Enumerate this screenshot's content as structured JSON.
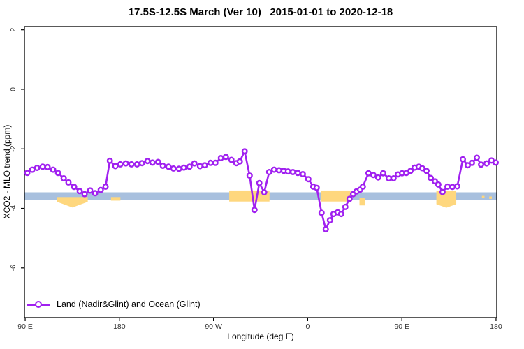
{
  "figure": {
    "title": "17.5S-12.5S March (Ver 10)   2015-01-01 to 2020-12-18",
    "x_axis_title": "Longitude (deg E)",
    "y_axis_title": "XCO2 - MLO trend (ppm)",
    "legend_label": "Land (Nadir&Glint) and Ocean (Glint)"
  },
  "colors": {
    "series": "#a020f0",
    "marker_fill": "#ffffff",
    "ocean_band": "#a8c0de",
    "highlight_band": "#fed77e",
    "axis": "#000000",
    "tick_label": "#303030",
    "background": "#ffffff"
  },
  "chart_data": {
    "type": "line",
    "title": "17.5S-12.5S March (Ver 10)   2015-01-01 to 2020-12-18",
    "xlabel": "Longitude (deg E)",
    "ylabel": "XCO2 - MLO trend (ppm)",
    "legend": [
      "Land (Nadir&Glint) and Ocean (Glint)"
    ],
    "legend_position": "bottom-left",
    "grid": false,
    "x_axis_note": "longitude axis runs eastward from 90E wrapping past the dateline and prime meridian: ticks 90E,180,90W,0,90E,180 (stored here as 90..540 continuous degrees)",
    "xlim": [
      89.3,
      540.7
    ],
    "ylim": [
      -7.67,
      2.11
    ],
    "x_ticks": [
      {
        "deg": 90,
        "label": "90 E"
      },
      {
        "deg": 180,
        "label": "180"
      },
      {
        "deg": 270,
        "label": "90 W"
      },
      {
        "deg": 360,
        "label": "0"
      },
      {
        "deg": 450,
        "label": "90 E"
      },
      {
        "deg": 540,
        "label": "180"
      }
    ],
    "y_ticks": [
      {
        "v": 2,
        "label": "2"
      },
      {
        "v": 0,
        "label": "0"
      },
      {
        "v": -2,
        "label": "-2"
      },
      {
        "v": -4,
        "label": "-4"
      },
      {
        "v": -6,
        "label": "-6"
      }
    ],
    "ocean_band": {
      "from": 89.3,
      "to": 540.7,
      "v_top": -3.46,
      "v_bottom": -3.72
    },
    "highlight_segments": [
      {
        "from": 120.5,
        "to": 149.8,
        "v_top": -3.62,
        "v_bottom": -3.78,
        "bump_to": -3.97
      },
      {
        "from": 172.0,
        "to": 181.0,
        "v_top": -3.62,
        "v_bottom": -3.74
      },
      {
        "from": 285.0,
        "to": 323.5,
        "v_top": -3.4,
        "v_bottom": -3.77
      },
      {
        "from": 373.0,
        "to": 401.0,
        "v_top": -3.4,
        "v_bottom": -3.77
      },
      {
        "from": 409.5,
        "to": 414.5,
        "v_top": -3.66,
        "v_bottom": -3.9
      },
      {
        "from": 483.0,
        "to": 502.0,
        "v_top": -3.42,
        "v_bottom": -3.86,
        "bump_to": -3.98
      },
      {
        "from": 526.5,
        "to": 529.0,
        "v_top": -3.58,
        "v_bottom": -3.66
      },
      {
        "from": 533.5,
        "to": 536.0,
        "v_top": -3.6,
        "v_bottom": -3.68
      }
    ],
    "series": [
      {
        "name": "Land (Nadir&Glint) and Ocean (Glint)",
        "marker": "open-circle",
        "points": [
          [
            92.0,
            -2.81
          ],
          [
            96.7,
            -2.7
          ],
          [
            101.4,
            -2.64
          ],
          [
            106.7,
            -2.6
          ],
          [
            111.4,
            -2.61
          ],
          [
            116.7,
            -2.7
          ],
          [
            121.4,
            -2.81
          ],
          [
            126.8,
            -2.99
          ],
          [
            131.4,
            -3.13
          ],
          [
            136.8,
            -3.28
          ],
          [
            142.1,
            -3.42
          ],
          [
            146.8,
            -3.52
          ],
          [
            152.1,
            -3.4
          ],
          [
            156.8,
            -3.49
          ],
          [
            162.2,
            -3.38
          ],
          [
            166.8,
            -3.27
          ],
          [
            170.9,
            -2.4
          ],
          [
            176.2,
            -2.58
          ],
          [
            180.9,
            -2.52
          ],
          [
            186.2,
            -2.49
          ],
          [
            191.6,
            -2.52
          ],
          [
            196.9,
            -2.52
          ],
          [
            201.6,
            -2.48
          ],
          [
            206.9,
            -2.41
          ],
          [
            211.6,
            -2.46
          ],
          [
            217.0,
            -2.44
          ],
          [
            221.6,
            -2.57
          ],
          [
            227.0,
            -2.6
          ],
          [
            231.7,
            -2.66
          ],
          [
            237.0,
            -2.67
          ],
          [
            241.7,
            -2.63
          ],
          [
            247.0,
            -2.6
          ],
          [
            251.7,
            -2.49
          ],
          [
            257.1,
            -2.58
          ],
          [
            261.7,
            -2.55
          ],
          [
            267.1,
            -2.47
          ],
          [
            271.8,
            -2.47
          ],
          [
            277.1,
            -2.31
          ],
          [
            281.8,
            -2.27
          ],
          [
            287.1,
            -2.37
          ],
          [
            291.8,
            -2.48
          ],
          [
            295.1,
            -2.42
          ],
          [
            299.8,
            -2.08
          ],
          [
            304.5,
            -2.9
          ],
          [
            309.2,
            -4.05
          ],
          [
            313.8,
            -3.15
          ],
          [
            318.5,
            -3.46
          ],
          [
            323.2,
            -2.78
          ],
          [
            327.9,
            -2.7
          ],
          [
            332.6,
            -2.72
          ],
          [
            337.2,
            -2.74
          ],
          [
            341.2,
            -2.76
          ],
          [
            345.9,
            -2.78
          ],
          [
            350.6,
            -2.81
          ],
          [
            355.3,
            -2.85
          ],
          [
            360.6,
            -3.02
          ],
          [
            365.3,
            -3.27
          ],
          [
            368.6,
            -3.31
          ],
          [
            373.3,
            -4.15
          ],
          [
            377.3,
            -4.7
          ],
          [
            381.3,
            -4.4
          ],
          [
            384.7,
            -4.19
          ],
          [
            388.7,
            -4.13
          ],
          [
            392.0,
            -4.19
          ],
          [
            396.0,
            -3.95
          ],
          [
            400.0,
            -3.68
          ],
          [
            403.4,
            -3.52
          ],
          [
            406.7,
            -3.43
          ],
          [
            410.1,
            -3.37
          ],
          [
            412.7,
            -3.27
          ],
          [
            418.1,
            -2.82
          ],
          [
            422.8,
            -2.88
          ],
          [
            427.4,
            -2.96
          ],
          [
            432.1,
            -2.82
          ],
          [
            437.5,
            -2.99
          ],
          [
            442.1,
            -2.99
          ],
          [
            446.2,
            -2.86
          ],
          [
            450.2,
            -2.82
          ],
          [
            454.2,
            -2.81
          ],
          [
            458.2,
            -2.74
          ],
          [
            462.2,
            -2.63
          ],
          [
            466.2,
            -2.6
          ],
          [
            469.5,
            -2.65
          ],
          [
            473.6,
            -2.74
          ],
          [
            477.6,
            -2.98
          ],
          [
            481.6,
            -3.09
          ],
          [
            484.9,
            -3.2
          ],
          [
            488.9,
            -3.45
          ],
          [
            493.6,
            -3.27
          ],
          [
            498.3,
            -3.28
          ],
          [
            503.0,
            -3.26
          ],
          [
            508.3,
            -2.35
          ],
          [
            513.0,
            -2.55
          ],
          [
            517.0,
            -2.47
          ],
          [
            521.7,
            -2.3
          ],
          [
            525.7,
            -2.53
          ],
          [
            531.0,
            -2.49
          ],
          [
            535.7,
            -2.39
          ],
          [
            539.7,
            -2.46
          ]
        ]
      }
    ]
  }
}
